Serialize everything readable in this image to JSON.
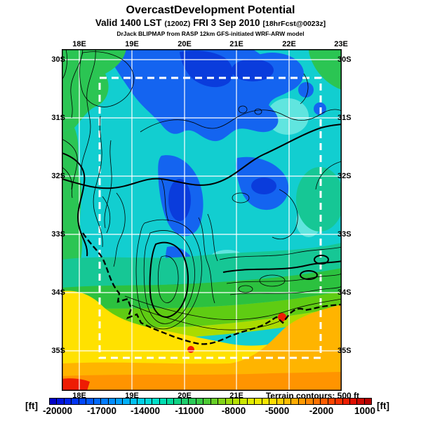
{
  "header": {
    "title": "OvercastDevelopment Potential",
    "valid_line": {
      "prefix": "Valid 1400 LST",
      "zulu": "(1200Z)",
      "date": "FRI 3 Sep 2010",
      "fcst": "[18hrFcst@0023z]"
    },
    "model_line": "DrJack BLIPMAP from RASP 12km GFS-initiated WRF-ARW model"
  },
  "map": {
    "top_labels": [
      "18E",
      "19E",
      "20E",
      "21E",
      "22E",
      "23E"
    ],
    "bottom_labels": [
      "18E",
      "19E",
      "20E",
      "21E"
    ],
    "left_labels": [
      "30S",
      "31S",
      "32S",
      "33S",
      "34S",
      "35S"
    ],
    "right_labels": [
      "30S",
      "31S",
      "32S",
      "33S",
      "34S",
      "35S"
    ],
    "note": "Terrain contours: 500 ft"
  },
  "colorbar": {
    "unit_left": "[ft]",
    "unit_right": "[ft]",
    "ticks": [
      "-20000",
      "-17000",
      "-14000",
      "-11000",
      "-8000",
      "-5000",
      "-2000",
      "1000"
    ],
    "segment_count": 44,
    "anchor_colors": [
      "#0000C8",
      "#0028F0",
      "#0050FF",
      "#0078FF",
      "#00A0FF",
      "#00C8F0",
      "#00E1D2",
      "#00DCA0",
      "#1ECD69",
      "#3CC83C",
      "#78D21E",
      "#B4E100",
      "#E6EE00",
      "#FFE600",
      "#FFC300",
      "#FF9B00",
      "#FF6E00",
      "#FF3C00",
      "#E61000",
      "#B40000"
    ]
  }
}
